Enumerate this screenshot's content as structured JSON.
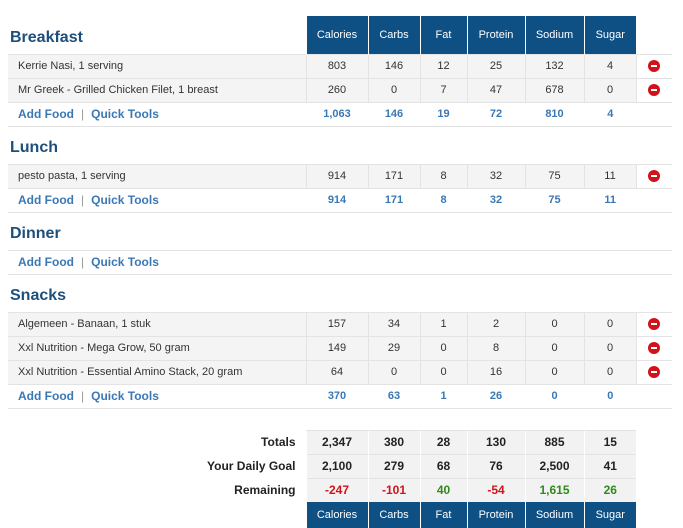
{
  "columns": [
    "Calories",
    "Carbs",
    "Fat",
    "Protein",
    "Sodium",
    "Sugar"
  ],
  "links": {
    "add_food": "Add Food",
    "separator": "|",
    "quick_tools": "Quick Tools"
  },
  "meals": {
    "breakfast": {
      "title": "Breakfast",
      "foods": [
        {
          "name": "Kerrie Nasi, 1 serving",
          "values": [
            "803",
            "146",
            "12",
            "25",
            "132",
            "4"
          ]
        },
        {
          "name": "Mr Greek - Grilled Chicken Filet, 1 breast",
          "values": [
            "260",
            "0",
            "7",
            "47",
            "678",
            "0"
          ]
        }
      ],
      "totals": [
        "1,063",
        "146",
        "19",
        "72",
        "810",
        "4"
      ]
    },
    "lunch": {
      "title": "Lunch",
      "foods": [
        {
          "name": "pesto pasta, 1 serving",
          "values": [
            "914",
            "171",
            "8",
            "32",
            "75",
            "11"
          ]
        }
      ],
      "totals": [
        "914",
        "171",
        "8",
        "32",
        "75",
        "11"
      ]
    },
    "dinner": {
      "title": "Dinner"
    },
    "snacks": {
      "title": "Snacks",
      "foods": [
        {
          "name": "Algemeen - Banaan, 1 stuk",
          "values": [
            "157",
            "34",
            "1",
            "2",
            "0",
            "0"
          ]
        },
        {
          "name": "Xxl Nutrition - Mega Grow, 50 gram",
          "values": [
            "149",
            "29",
            "0",
            "8",
            "0",
            "0"
          ]
        },
        {
          "name": "Xxl Nutrition - Essential Amino Stack, 20 gram",
          "values": [
            "64",
            "0",
            "0",
            "16",
            "0",
            "0"
          ]
        }
      ],
      "totals": [
        "370",
        "63",
        "1",
        "26",
        "0",
        "0"
      ]
    }
  },
  "summary": {
    "totals_label": "Totals",
    "totals": [
      "2,347",
      "380",
      "28",
      "130",
      "885",
      "15"
    ],
    "goal_label": "Your Daily Goal",
    "goal": [
      "2,100",
      "279",
      "68",
      "76",
      "2,500",
      "41"
    ],
    "remaining_label": "Remaining",
    "remaining": [
      "-247",
      "-101",
      "40",
      "-54",
      "1,615",
      "26"
    ]
  },
  "colors": {
    "header_blue": "#0e4f84",
    "title_blue": "#1d4f7c",
    "link_blue": "#3a78b5",
    "negative": "#d0121b",
    "positive": "#2f8a1c"
  }
}
